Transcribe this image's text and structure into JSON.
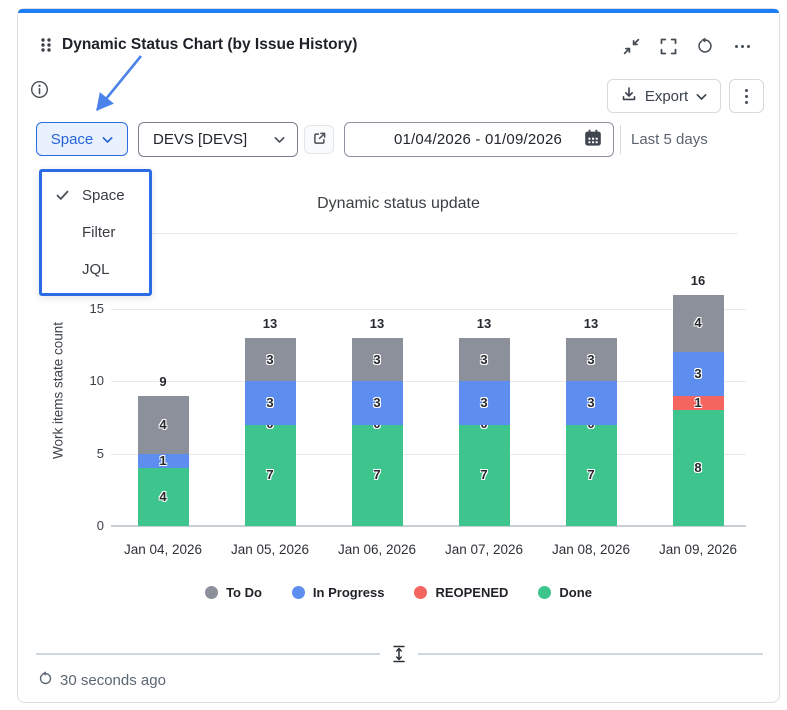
{
  "widget": {
    "title": "Dynamic Status Chart (by Issue History)",
    "export_label": "Export",
    "controls": {
      "scope_selector": {
        "label": "Space"
      },
      "project_selector": {
        "value": "DEVS [DEVS]"
      },
      "date_range": {
        "value": "01/04/2026 - 01/09/2026"
      },
      "range_hint": "Last 5 days"
    },
    "scope_menu": {
      "items": [
        {
          "label": "Space",
          "selected": true
        },
        {
          "label": "Filter",
          "selected": false
        },
        {
          "label": "JQL",
          "selected": false
        }
      ]
    },
    "footer": {
      "last_updated": "30 seconds ago"
    },
    "colors": {
      "accent_blue": "#1e7df2",
      "annotation_blue": "#4c83ea",
      "highlight_border": "#2b6be3"
    }
  },
  "chart_data": {
    "type": "bar",
    "subtype": "stacked",
    "title": "Dynamic status update",
    "xlabel": "",
    "ylabel": "Work items state count",
    "ylim": [
      0,
      15
    ],
    "yticks": [
      0,
      5,
      10,
      15
    ],
    "grid": true,
    "legend_position": "bottom",
    "categories": [
      "Jan 04, 2026",
      "Jan 05, 2026",
      "Jan 06, 2026",
      "Jan 07, 2026",
      "Jan 08, 2026",
      "Jan 09, 2026"
    ],
    "series": [
      {
        "name": "To Do",
        "color": "#8B909A",
        "values": [
          4,
          3,
          3,
          3,
          3,
          4
        ]
      },
      {
        "name": "In Progress",
        "color": "#5C8DEF",
        "values": [
          1,
          3,
          3,
          3,
          3,
          3
        ]
      },
      {
        "name": "REOPENED",
        "color": "#F4655F",
        "values": [
          null,
          0,
          0,
          0,
          0,
          1
        ]
      },
      {
        "name": "Done",
        "color": "#3EC48D",
        "values": [
          4,
          7,
          7,
          7,
          7,
          8
        ]
      }
    ],
    "totals": [
      9,
      13,
      13,
      13,
      13,
      16
    ]
  }
}
